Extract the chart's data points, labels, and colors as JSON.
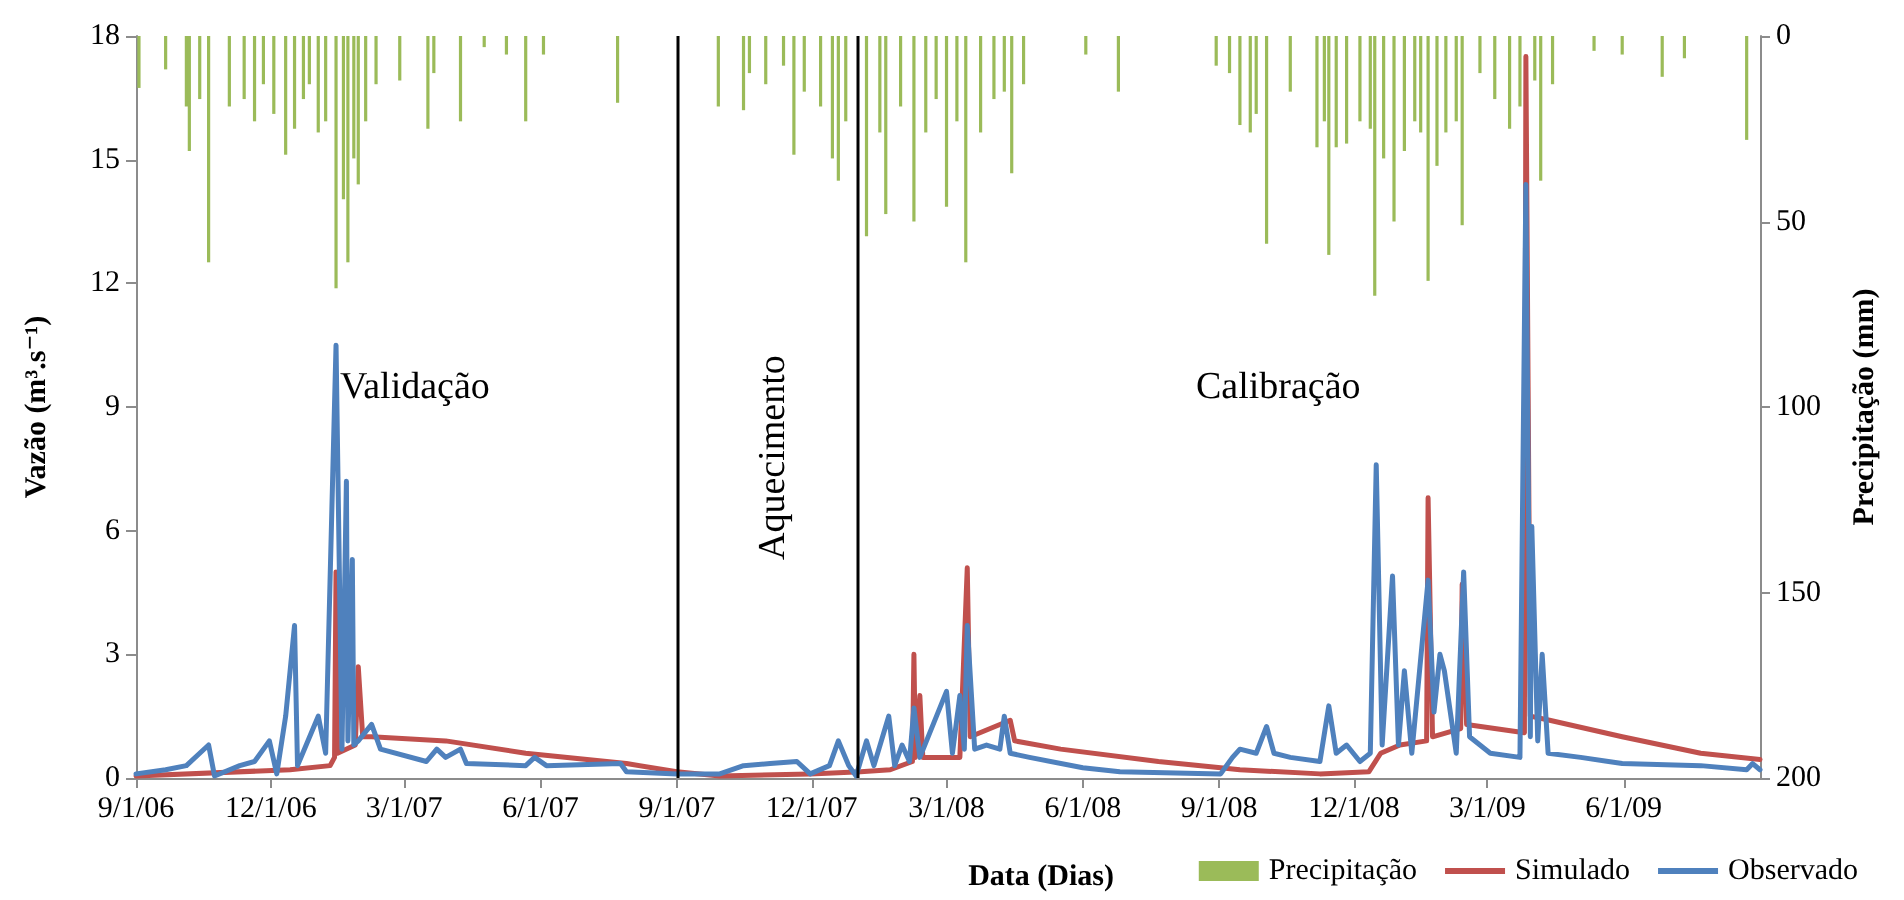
{
  "chart_data": {
    "type": "line",
    "xlabel": "Data (Dias)",
    "ylabel": "Vazão (m³.s⁻¹)",
    "y2label": "Precipitação (mm)",
    "xlim": [
      "2006-09-01",
      "2009-09-01"
    ],
    "xticks": [
      {
        "value": "2006-09-01",
        "label": "9/1/06"
      },
      {
        "value": "2006-12-01",
        "label": "12/1/06"
      },
      {
        "value": "2007-03-01",
        "label": "3/1/07"
      },
      {
        "value": "2007-06-01",
        "label": "6/1/07"
      },
      {
        "value": "2007-09-01",
        "label": "9/1/07"
      },
      {
        "value": "2007-12-01",
        "label": "12/1/07"
      },
      {
        "value": "2008-03-01",
        "label": "3/1/08"
      },
      {
        "value": "2008-06-01",
        "label": "6/1/08"
      },
      {
        "value": "2008-09-01",
        "label": "9/1/08"
      },
      {
        "value": "2008-12-01",
        "label": "12/1/08"
      },
      {
        "value": "2009-03-01",
        "label": "3/1/09"
      },
      {
        "value": "2009-06-01",
        "label": "6/1/09"
      }
    ],
    "ylim": [
      0,
      18
    ],
    "yticks": [
      0,
      3,
      6,
      9,
      12,
      15,
      18
    ],
    "y2lim": [
      200,
      0
    ],
    "y2ticks": [
      0,
      50,
      100,
      150,
      200
    ],
    "legend": "bottom right",
    "annotations": [
      "Validação",
      "Aquecimento",
      "Calibração"
    ],
    "ref_lines": [
      {
        "axis": "x",
        "value": "2007-09-01",
        "color": "#000000"
      },
      {
        "axis": "x",
        "value": "2008-01-01",
        "color": "#000000"
      }
    ],
    "series": [
      {
        "name": "Precipitação",
        "type": "bar",
        "axis": "y2",
        "color": "#9bbb59",
        "x": [
          "2006-09-03",
          "2006-09-21",
          "2006-10-05",
          "2006-10-07",
          "2006-10-14",
          "2006-10-20",
          "2006-11-03",
          "2006-11-13",
          "2006-11-20",
          "2006-11-26",
          "2006-12-03",
          "2006-12-11",
          "2006-12-17",
          "2006-12-23",
          "2006-12-27",
          "2007-01-02",
          "2007-01-07",
          "2007-01-14",
          "2007-01-19",
          "2007-01-22",
          "2007-01-26",
          "2007-01-29",
          "2007-02-03",
          "2007-02-10",
          "2007-02-26",
          "2007-03-17",
          "2007-03-21",
          "2007-04-08",
          "2007-04-24",
          "2007-05-09",
          "2007-05-22",
          "2007-06-03",
          "2007-07-23",
          "2007-09-29",
          "2007-10-16",
          "2007-10-20",
          "2007-10-31",
          "2007-11-12",
          "2007-11-19",
          "2007-11-26",
          "2007-12-07",
          "2007-12-15",
          "2007-12-19",
          "2007-12-24",
          "2008-01-07",
          "2008-01-16",
          "2008-01-20",
          "2008-01-30",
          "2008-02-08",
          "2008-02-16",
          "2008-02-23",
          "2008-03-01",
          "2008-03-08",
          "2008-03-14",
          "2008-03-24",
          "2008-04-02",
          "2008-04-09",
          "2008-04-14",
          "2008-04-22",
          "2008-06-03",
          "2008-06-25",
          "2008-08-30",
          "2008-09-08",
          "2008-09-15",
          "2008-09-22",
          "2008-09-26",
          "2008-10-03",
          "2008-10-19",
          "2008-11-06",
          "2008-11-11",
          "2008-11-14",
          "2008-11-19",
          "2008-11-26",
          "2008-12-05",
          "2008-12-12",
          "2008-12-15",
          "2008-12-21",
          "2008-12-28",
          "2009-01-04",
          "2009-01-11",
          "2009-01-15",
          "2009-01-20",
          "2009-01-26",
          "2009-02-01",
          "2009-02-08",
          "2009-02-12",
          "2009-02-24",
          "2009-03-06",
          "2009-03-16",
          "2009-03-23",
          "2009-04-02",
          "2009-04-06",
          "2009-04-14",
          "2009-05-12",
          "2009-05-31",
          "2009-06-27",
          "2009-07-12",
          "2009-08-23"
        ],
        "values": [
          14,
          9,
          19,
          31,
          17,
          61,
          19,
          17,
          23,
          13,
          21,
          32,
          25,
          17,
          13,
          26,
          23,
          68,
          44,
          61,
          33,
          40,
          23,
          13,
          12,
          25,
          10,
          23,
          3,
          5,
          23,
          5,
          18,
          19,
          20,
          10,
          13,
          8,
          32,
          15,
          19,
          33,
          39,
          23,
          54,
          26,
          48,
          19,
          50,
          26,
          17,
          46,
          23,
          61,
          26,
          17,
          15,
          37,
          13,
          5,
          15,
          8,
          10,
          24,
          26,
          21,
          56,
          15,
          30,
          23,
          59,
          30,
          29,
          23,
          25,
          70,
          33,
          50,
          31,
          23,
          26,
          66,
          35,
          26,
          23,
          51,
          10,
          17,
          25,
          19,
          12,
          39,
          13,
          4,
          5,
          11,
          6,
          28
        ]
      },
      {
        "name": "Simulado",
        "color": "#c0504d",
        "x": [
          "2006-09-01",
          "2006-12-14",
          "2007-01-10",
          "2007-01-13",
          "2007-01-14",
          "2007-01-15",
          "2007-01-27",
          "2007-01-29",
          "2007-02-01",
          "2007-02-07",
          "2007-03-29",
          "2007-05-22",
          "2007-07-29",
          "2007-09-01",
          "2007-09-30",
          "2007-11-30",
          "2008-01-03",
          "2008-01-23",
          "2008-02-07",
          "2008-02-08",
          "2008-02-09",
          "2008-02-12",
          "2008-02-14",
          "2008-03-10",
          "2008-03-15",
          "2008-03-17",
          "2008-04-13",
          "2008-04-16",
          "2008-05-17",
          "2008-07-22",
          "2008-09-02",
          "2008-09-15",
          "2008-11-08",
          "2008-12-11",
          "2008-12-19",
          "2009-01-01",
          "2009-01-19",
          "2009-01-20",
          "2009-01-23",
          "2009-02-11",
          "2009-02-12",
          "2009-02-15",
          "2009-03-26",
          "2009-03-27",
          "2009-03-30",
          "2009-04-12",
          "2009-05-31",
          "2009-07-23",
          "2009-09-01"
        ],
        "values": [
          0.05,
          0.2,
          0.3,
          0.5,
          5.0,
          0.6,
          0.8,
          2.7,
          1.0,
          1.0,
          0.9,
          0.6,
          0.35,
          0.15,
          0.05,
          0.1,
          0.15,
          0.2,
          0.4,
          3.0,
          0.5,
          2.0,
          0.5,
          0.5,
          5.1,
          1.0,
          1.4,
          0.9,
          0.7,
          0.4,
          0.25,
          0.2,
          0.1,
          0.15,
          0.6,
          0.8,
          0.9,
          6.8,
          1.0,
          1.2,
          4.7,
          1.3,
          1.1,
          17.5,
          1.5,
          1.4,
          1.0,
          0.6,
          0.45
        ]
      },
      {
        "name": "Observado",
        "color": "#4f81bd",
        "x": [
          "2006-09-01",
          "2006-09-21",
          "2006-10-05",
          "2006-10-20",
          "2006-10-24",
          "2006-11-10",
          "2006-11-20",
          "2006-11-30",
          "2006-12-05",
          "2006-12-11",
          "2006-12-17",
          "2006-12-19",
          "2007-01-02",
          "2007-01-07",
          "2007-01-14",
          "2007-01-18",
          "2007-01-21",
          "2007-01-22",
          "2007-01-25",
          "2007-01-26",
          "2007-01-29",
          "2007-02-07",
          "2007-02-13",
          "2007-03-16",
          "2007-03-23",
          "2007-03-29",
          "2007-04-08",
          "2007-04-12",
          "2007-05-22",
          "2007-05-28",
          "2007-06-05",
          "2007-07-25",
          "2007-07-29",
          "2007-09-01",
          "2007-09-30",
          "2007-10-16",
          "2007-11-03",
          "2007-11-21",
          "2007-11-30",
          "2007-12-13",
          "2007-12-19",
          "2007-12-26",
          "2007-12-31",
          "2008-01-07",
          "2008-01-12",
          "2008-01-22",
          "2008-01-26",
          "2008-01-31",
          "2008-02-05",
          "2008-02-08",
          "2008-02-12",
          "2008-03-01",
          "2008-03-05",
          "2008-03-10",
          "2008-03-13",
          "2008-03-15",
          "2008-03-20",
          "2008-03-28",
          "2008-04-06",
          "2008-04-09",
          "2008-04-13",
          "2008-04-26",
          "2008-06-01",
          "2008-06-26",
          "2008-09-02",
          "2008-09-10",
          "2008-09-15",
          "2008-09-26",
          "2008-10-03",
          "2008-10-08",
          "2008-10-19",
          "2008-11-08",
          "2008-11-14",
          "2008-11-19",
          "2008-11-26",
          "2008-12-05",
          "2008-12-12",
          "2008-12-16",
          "2008-12-20",
          "2008-12-27",
          "2008-12-31",
          "2009-01-04",
          "2009-01-09",
          "2009-01-20",
          "2009-01-24",
          "2009-01-28",
          "2009-01-31",
          "2009-02-04",
          "2009-02-08",
          "2009-02-13",
          "2009-02-17",
          "2009-03-03",
          "2009-03-23",
          "2009-03-27",
          "2009-03-30",
          "2009-03-31",
          "2009-04-04",
          "2009-04-07",
          "2009-04-11",
          "2009-05-03",
          "2009-05-31",
          "2009-07-23",
          "2009-08-23",
          "2009-08-27",
          "2009-09-01"
        ],
        "values": [
          0.1,
          0.2,
          0.3,
          0.8,
          0.05,
          0.3,
          0.4,
          0.9,
          0.1,
          1.5,
          3.7,
          0.3,
          1.5,
          0.6,
          10.5,
          0.7,
          7.2,
          0.9,
          5.3,
          0.8,
          0.9,
          1.3,
          0.7,
          0.4,
          0.7,
          0.5,
          0.7,
          0.35,
          0.3,
          0.5,
          0.3,
          0.35,
          0.15,
          0.1,
          0.1,
          0.3,
          0.35,
          0.4,
          0.1,
          0.3,
          0.9,
          0.3,
          0.05,
          0.9,
          0.3,
          1.5,
          0.3,
          0.8,
          0.4,
          1.7,
          0.5,
          2.1,
          0.6,
          2.0,
          0.7,
          3.7,
          0.7,
          0.8,
          0.7,
          1.5,
          0.6,
          0.5,
          0.25,
          0.15,
          0.1,
          0.5,
          0.7,
          0.6,
          1.25,
          0.6,
          0.5,
          0.4,
          1.75,
          0.6,
          0.8,
          0.4,
          0.6,
          7.6,
          0.8,
          4.9,
          0.8,
          2.6,
          0.6,
          4.8,
          1.6,
          3.0,
          2.6,
          1.6,
          0.6,
          5.0,
          1.0,
          0.6,
          0.5,
          14.4,
          1.0,
          6.1,
          0.9,
          3.0,
          0.6,
          0.5,
          0.35,
          0.3,
          0.2,
          0.35,
          0.2
        ]
      }
    ]
  }
}
